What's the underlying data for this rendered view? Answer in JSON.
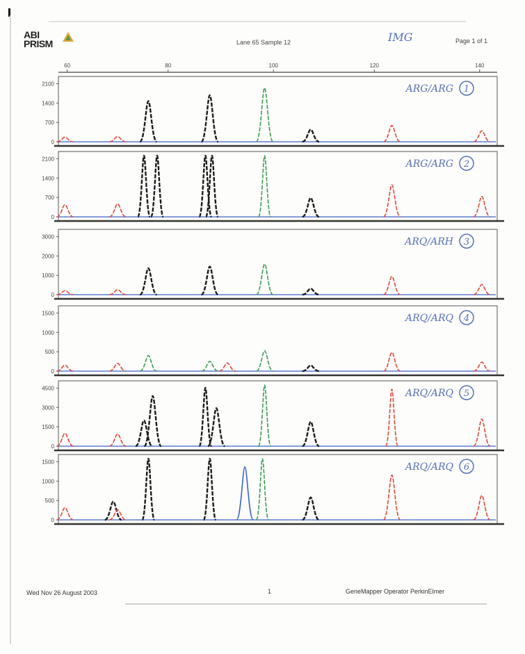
{
  "header": {
    "logo_text_top": "ABI",
    "logo_text_bottom": "PRISM",
    "center_text": "Lane 65 Sample 12",
    "handwritten_title": "IMG",
    "page_label": "Page 1 of 1"
  },
  "footer": {
    "left": "Wed Nov 26 August 2003",
    "middle": "1",
    "right": "GeneMapper Operator PerkinElmer"
  },
  "colors": {
    "black_dye": "#1a1a1a",
    "green_dye": "#3a9a55",
    "blue_dye": "#3b63c9",
    "red_dye": "#e0463a",
    "panel_border": "#555555",
    "handwriting": "#5570b8"
  },
  "chart_data": {
    "type": "line",
    "title": "",
    "xlabel": "",
    "x_ticks": [
      "60",
      "80",
      "100",
      "120",
      "140"
    ],
    "xlim": [
      50,
      150
    ],
    "panels": [
      {
        "index": 1,
        "annotation": "ARG/ARG",
        "number": "1",
        "y_ticks": [
          "2100",
          "1400",
          "700",
          "0"
        ],
        "ylim": [
          0,
          2100
        ],
        "peaks": [
          {
            "dye": "red",
            "x": 51.5,
            "height": 160
          },
          {
            "dye": "red",
            "x": 63.5,
            "height": 180
          },
          {
            "dye": "black",
            "x": 70.5,
            "height": 1400
          },
          {
            "dye": "black",
            "x": 84.5,
            "height": 1600
          },
          {
            "dye": "green",
            "x": 97,
            "height": 1850
          },
          {
            "dye": "black",
            "x": 107.5,
            "height": 420
          },
          {
            "dye": "red",
            "x": 126,
            "height": 560
          },
          {
            "dye": "red",
            "x": 146.5,
            "height": 380
          }
        ]
      },
      {
        "index": 2,
        "annotation": "ARG/ARG",
        "number": "2",
        "y_ticks": [
          "2100",
          "1400",
          "700",
          "0"
        ],
        "ylim": [
          0,
          2100
        ],
        "peaks": [
          {
            "dye": "red",
            "x": 51.5,
            "height": 420
          },
          {
            "dye": "red",
            "x": 63.5,
            "height": 450
          },
          {
            "dye": "black",
            "x": 69.5,
            "height": 2100
          },
          {
            "dye": "black",
            "x": 72.5,
            "height": 2100
          },
          {
            "dye": "black",
            "x": 83.5,
            "height": 2100
          },
          {
            "dye": "black",
            "x": 85,
            "height": 2100
          },
          {
            "dye": "green",
            "x": 97,
            "height": 2100
          },
          {
            "dye": "black",
            "x": 107.5,
            "height": 650
          },
          {
            "dye": "red",
            "x": 126,
            "height": 1100
          },
          {
            "dye": "red",
            "x": 146.5,
            "height": 700
          }
        ]
      },
      {
        "index": 3,
        "annotation": "ARQ/ARH",
        "number": "3",
        "y_ticks": [
          "3000",
          "2000",
          "1000",
          "0"
        ],
        "ylim": [
          0,
          3000
        ],
        "peaks": [
          {
            "dye": "red",
            "x": 51.5,
            "height": 200
          },
          {
            "dye": "red",
            "x": 63.5,
            "height": 250
          },
          {
            "dye": "black",
            "x": 70.5,
            "height": 1300
          },
          {
            "dye": "black",
            "x": 84.5,
            "height": 1380
          },
          {
            "dye": "green",
            "x": 97,
            "height": 1500
          },
          {
            "dye": "black",
            "x": 107.5,
            "height": 300
          },
          {
            "dye": "red",
            "x": 126,
            "height": 900
          },
          {
            "dye": "red",
            "x": 146.5,
            "height": 500
          }
        ]
      },
      {
        "index": 4,
        "annotation": "ARQ/ARQ",
        "number": "4",
        "y_ticks": [
          "1500",
          "1000",
          "500",
          "0"
        ],
        "ylim": [
          0,
          1500
        ],
        "peaks": [
          {
            "dye": "red",
            "x": 51.5,
            "height": 150
          },
          {
            "dye": "red",
            "x": 63.5,
            "height": 190
          },
          {
            "dye": "green",
            "x": 70.5,
            "height": 380
          },
          {
            "dye": "green",
            "x": 84.5,
            "height": 240
          },
          {
            "dye": "red",
            "x": 88.5,
            "height": 200
          },
          {
            "dye": "green",
            "x": 97,
            "height": 500
          },
          {
            "dye": "black",
            "x": 107.5,
            "height": 140
          },
          {
            "dye": "red",
            "x": 126,
            "height": 460
          },
          {
            "dye": "red",
            "x": 146.5,
            "height": 220
          }
        ]
      },
      {
        "index": 5,
        "annotation": "ARQ/ARQ",
        "number": "5",
        "y_ticks": [
          "4500",
          "3000",
          "1500",
          "0"
        ],
        "ylim": [
          0,
          4500
        ],
        "peaks": [
          {
            "dye": "red",
            "x": 51.5,
            "height": 950
          },
          {
            "dye": "red",
            "x": 63.5,
            "height": 900
          },
          {
            "dye": "black",
            "x": 69.5,
            "height": 1900
          },
          {
            "dye": "black",
            "x": 71.5,
            "height": 3700
          },
          {
            "dye": "black",
            "x": 83.5,
            "height": 4300
          },
          {
            "dye": "black",
            "x": 86,
            "height": 2800
          },
          {
            "dye": "green",
            "x": 97,
            "height": 4500
          },
          {
            "dye": "black",
            "x": 107.5,
            "height": 1800
          },
          {
            "dye": "red",
            "x": 126,
            "height": 4200
          },
          {
            "dye": "red",
            "x": 146.5,
            "height": 2000
          }
        ]
      },
      {
        "index": 6,
        "annotation": "ARQ/ARQ",
        "number": "6",
        "y_ticks": [
          "1500",
          "1000",
          "500",
          "0"
        ],
        "ylim": [
          0,
          1500
        ],
        "peaks": [
          {
            "dye": "red",
            "x": 51.5,
            "height": 300
          },
          {
            "dye": "black",
            "x": 62.5,
            "height": 450
          },
          {
            "dye": "red",
            "x": 63.5,
            "height": 250
          },
          {
            "dye": "black",
            "x": 70.5,
            "height": 1500
          },
          {
            "dye": "black",
            "x": 84.5,
            "height": 1500
          },
          {
            "dye": "blue",
            "x": 92.5,
            "height": 1300
          },
          {
            "dye": "green",
            "x": 96.5,
            "height": 1500
          },
          {
            "dye": "black",
            "x": 107.5,
            "height": 550
          },
          {
            "dye": "red",
            "x": 126,
            "height": 1100
          },
          {
            "dye": "red",
            "x": 146.5,
            "height": 600
          }
        ]
      }
    ]
  }
}
